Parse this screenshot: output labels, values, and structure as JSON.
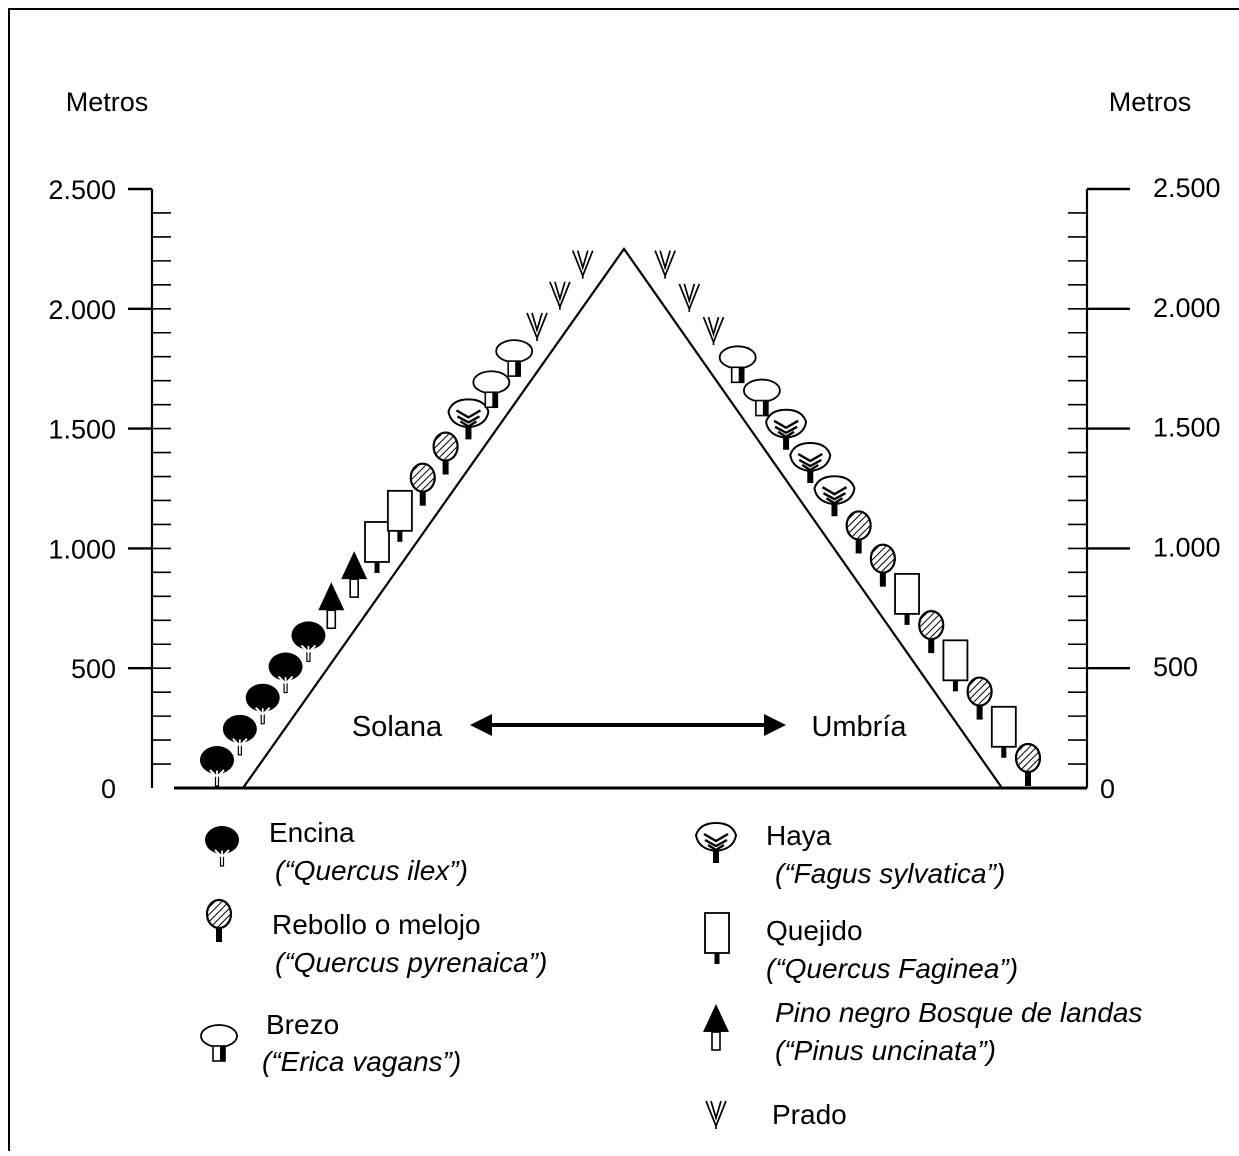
{
  "axis": {
    "left_title": "Metros",
    "right_title": "Metros",
    "ticks": [
      {
        "value": 0,
        "label": "0"
      },
      {
        "value": 500,
        "label": "500"
      },
      {
        "value": 1000,
        "label": "1.000"
      },
      {
        "value": 1500,
        "label": "1.500"
      },
      {
        "value": 2000,
        "label": "2.000"
      },
      {
        "value": 2500,
        "label": "2.500"
      }
    ],
    "range": [
      0,
      2500
    ],
    "minor_step": 100
  },
  "slopes": {
    "left": "Solana",
    "right": "Umbría"
  },
  "legend": [
    {
      "icon": "encina-icon",
      "name": "Encina",
      "scientific": "(“Quercus ilex”)"
    },
    {
      "icon": "rebollo-icon",
      "name": "Rebollo o melojo",
      "scientific": "(“Quercus pyrenaica”)"
    },
    {
      "icon": "brezo-icon",
      "name": "Brezo",
      "scientific": "(“Erica vagans”)"
    },
    {
      "icon": "haya-icon",
      "name": "Haya",
      "scientific": "(“Fagus sylvatica”)"
    },
    {
      "icon": "quejido-icon",
      "name": "Quejido",
      "scientific": "(“Quercus Faginea”)"
    },
    {
      "icon": "pino-icon",
      "name": "Pino negro Bosque de landas",
      "scientific": "(“Pinus uncinata”)"
    },
    {
      "icon": "prado-icon",
      "name": "Prado",
      "scientific": ""
    }
  ],
  "zonation": {
    "peak_altitude": 2250,
    "solana": [
      "encina",
      "encina",
      "encina",
      "encina",
      "encina",
      "pino",
      "pino",
      "quejido",
      "quejido",
      "rebollo",
      "rebollo",
      "haya",
      "brezo",
      "brezo",
      "prado",
      "prado",
      "prado"
    ],
    "umbria": [
      "prado",
      "prado",
      "prado",
      "brezo",
      "brezo",
      "haya",
      "haya",
      "haya",
      "rebollo",
      "rebollo",
      "quejido",
      "rebollo",
      "quejido",
      "rebollo",
      "quejido",
      "rebollo"
    ]
  }
}
